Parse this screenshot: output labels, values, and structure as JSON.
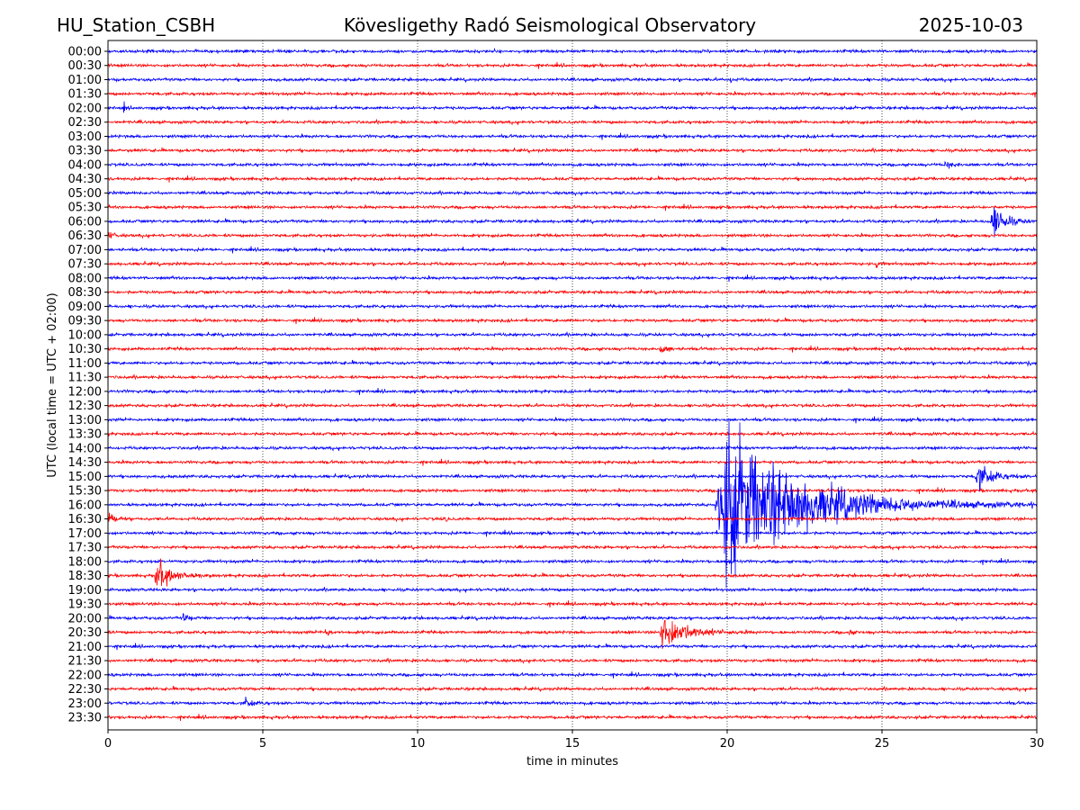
{
  "chart_data": {
    "type": "line",
    "title_left": "HU_Station_CSBH",
    "title_center": "Kövesligethy Radó Seismological Observatory",
    "title_right": "2025-10-03",
    "xlabel": "time in minutes",
    "ylabel": "UTC (local time = UTC + 02:00)",
    "xlim": [
      0,
      30
    ],
    "xticks": [
      0,
      5,
      10,
      15,
      20,
      25,
      30
    ],
    "grid": "vertical dotted at x ticks",
    "row_labels": [
      "00:00",
      "00:30",
      "01:00",
      "01:30",
      "02:00",
      "02:30",
      "03:00",
      "03:30",
      "04:00",
      "04:30",
      "05:00",
      "05:30",
      "06:00",
      "06:30",
      "07:00",
      "07:30",
      "08:00",
      "08:30",
      "09:00",
      "09:30",
      "10:00",
      "10:30",
      "11:00",
      "11:30",
      "12:00",
      "12:30",
      "13:00",
      "13:30",
      "14:00",
      "14:30",
      "15:00",
      "15:30",
      "16:00",
      "16:30",
      "17:00",
      "17:30",
      "18:00",
      "18:30",
      "19:00",
      "19:30",
      "20:00",
      "20:30",
      "21:00",
      "21:30",
      "22:00",
      "22:30",
      "23:00",
      "23:30"
    ],
    "series_colors": [
      "#0000ff",
      "#ff0000"
    ],
    "noise_level": 1,
    "events": [
      {
        "row": "01:00",
        "start_min": 20.1,
        "duration_min": 0.3,
        "amplitude": 2
      },
      {
        "row": "02:00",
        "start_min": 0.5,
        "duration_min": 0.2,
        "amplitude": 2.5
      },
      {
        "row": "04:00",
        "start_min": 27.0,
        "duration_min": 1.2,
        "amplitude": 2
      },
      {
        "row": "06:00",
        "start_min": 28.5,
        "duration_min": 1.5,
        "amplitude": 14
      },
      {
        "row": "06:30",
        "start_min": 0.0,
        "duration_min": 0.6,
        "amplitude": 2.5
      },
      {
        "row": "07:30",
        "start_min": 24.8,
        "duration_min": 0.3,
        "amplitude": 3
      },
      {
        "row": "10:30",
        "start_min": 17.8,
        "duration_min": 1.0,
        "amplitude": 3
      },
      {
        "row": "11:00",
        "start_min": 29.7,
        "duration_min": 0.3,
        "amplitude": 2
      },
      {
        "row": "15:00",
        "start_min": 28.0,
        "duration_min": 2.0,
        "amplitude": 9
      },
      {
        "row": "16:00",
        "start_min": 19.6,
        "duration_min": 10.0,
        "amplitude": 50
      },
      {
        "row": "16:00",
        "start_min": 23.2,
        "duration_min": 0.8,
        "amplitude": 6
      },
      {
        "row": "16:00",
        "start_min": 29.8,
        "duration_min": 0.2,
        "amplitude": 7
      },
      {
        "row": "16:30",
        "start_min": 0.0,
        "duration_min": 1.0,
        "amplitude": 4
      },
      {
        "row": "16:30",
        "start_min": 10.9,
        "duration_min": 0.3,
        "amplitude": 2
      },
      {
        "row": "18:00",
        "start_min": 19.9,
        "duration_min": 0.7,
        "amplitude": 3
      },
      {
        "row": "18:30",
        "start_min": 1.5,
        "duration_min": 2.0,
        "amplitude": 10
      },
      {
        "row": "20:00",
        "start_min": 2.4,
        "duration_min": 0.7,
        "amplitude": 2.5
      },
      {
        "row": "20:30",
        "start_min": 7.0,
        "duration_min": 0.5,
        "amplitude": 4
      },
      {
        "row": "20:30",
        "start_min": 17.8,
        "duration_min": 3.0,
        "amplitude": 13
      },
      {
        "row": "20:30",
        "start_min": 23.9,
        "duration_min": 0.4,
        "amplitude": 3
      },
      {
        "row": "23:00",
        "start_min": 4.4,
        "duration_min": 1.0,
        "amplitude": 3
      }
    ]
  }
}
